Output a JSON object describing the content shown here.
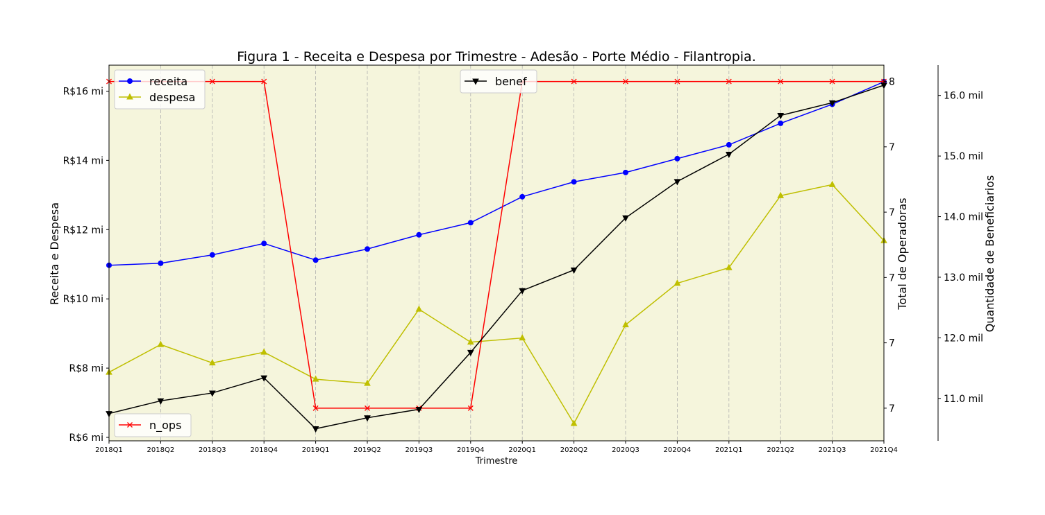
{
  "chart_data": {
    "type": "line",
    "title": "Figura 1 - Receita e Despesa por Trimestre - Adesão - Porte Médio - Filantropia.",
    "xlabel": "Trimestre",
    "categories": [
      "2018Q1",
      "2018Q2",
      "2018Q3",
      "2018Q4",
      "2019Q1",
      "2019Q2",
      "2019Q3",
      "2019Q4",
      "2020Q1",
      "2020Q2",
      "2020Q3",
      "2020Q4",
      "2021Q1",
      "2021Q2",
      "2021Q3",
      "2021Q4"
    ],
    "plot_background": "#f5f5dc",
    "grid": "vertical dashed",
    "axes": {
      "left": {
        "label": "Receita e Despesa",
        "ylim": [
          5.9,
          16.75
        ],
        "ticks": [
          6,
          8,
          10,
          12,
          14,
          16
        ],
        "tick_labels": [
          "R$6 mi",
          "R$8 mi",
          "R$10 mi",
          "R$12 mi",
          "R$14 mi",
          "R$16 mi"
        ]
      },
      "right1": {
        "label": "Total de Operadoras",
        "ylim": [
          6.9,
          8.05
        ],
        "ticks": [
          7.0,
          7.2,
          7.4,
          7.6,
          7.8,
          8.0
        ],
        "tick_labels": [
          "7",
          "7",
          "7",
          "7",
          "7",
          "8"
        ]
      },
      "right2": {
        "label": "Quantidade de Beneficiarios",
        "ylim": [
          10.3,
          16.5
        ],
        "ticks": [
          11,
          12,
          13,
          14,
          15,
          16
        ],
        "tick_labels": [
          "11.0 mil",
          "12.0 mil",
          "13.0 mil",
          "14.0 mil",
          "15.0 mil",
          "16.0 mil"
        ]
      }
    },
    "series": [
      {
        "name": "receita",
        "axis": "left",
        "color": "#0000ff",
        "marker": "circle",
        "values": [
          10.97,
          11.03,
          11.27,
          11.6,
          11.12,
          11.44,
          11.85,
          12.2,
          12.95,
          13.38,
          13.65,
          14.05,
          14.45,
          15.07,
          15.62,
          16.27
        ]
      },
      {
        "name": "despesa",
        "axis": "left",
        "color": "#bfbf00",
        "marker": "triangle-up",
        "values": [
          7.88,
          8.68,
          8.15,
          8.46,
          7.68,
          7.56,
          9.7,
          8.75,
          8.87,
          6.4,
          9.25,
          10.45,
          10.9,
          12.98,
          13.3,
          11.68
        ]
      },
      {
        "name": "n_ops",
        "axis": "right1",
        "color": "#ff0000",
        "marker": "x",
        "values": [
          8,
          8,
          8,
          8,
          7,
          7,
          7,
          7,
          8,
          8,
          8,
          8,
          8,
          8,
          8,
          8
        ]
      },
      {
        "name": "benef",
        "axis": "right2",
        "color": "#000000",
        "marker": "triangle-down",
        "values": [
          10.75,
          10.96,
          11.09,
          11.34,
          10.5,
          10.68,
          10.82,
          11.76,
          12.78,
          13.12,
          13.98,
          14.58,
          15.03,
          15.67,
          15.88,
          16.17
        ]
      }
    ],
    "legends": [
      {
        "position": "upper-left",
        "entries": [
          "receita",
          "despesa"
        ]
      },
      {
        "position": "upper-center",
        "entries": [
          "benef"
        ]
      },
      {
        "position": "lower-left",
        "entries": [
          "n_ops"
        ]
      }
    ]
  }
}
